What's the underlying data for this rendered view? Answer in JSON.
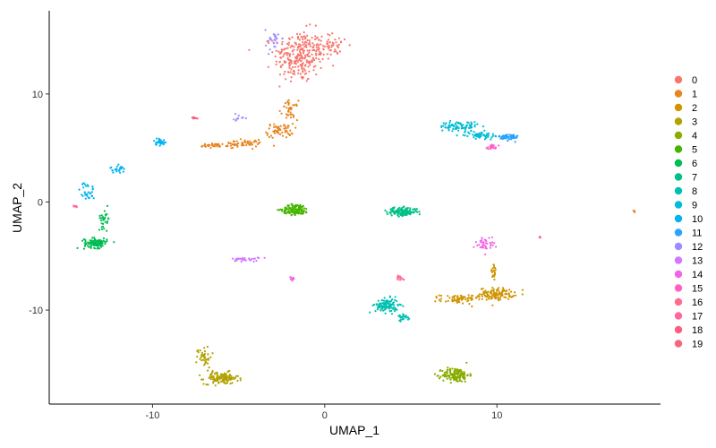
{
  "chart_data": {
    "type": "scatter",
    "title": "",
    "xlabel": "UMAP_1",
    "ylabel": "UMAP_2",
    "xlim": [
      -16,
      19.5
    ],
    "ylim": [
      -18.7,
      17.7
    ],
    "x_ticks": [
      -10,
      0,
      10
    ],
    "y_ticks": [
      -10,
      0,
      10
    ],
    "x_tick_labels": [
      "-10",
      "0",
      "10"
    ],
    "y_tick_labels": [
      "-10",
      "0",
      "10"
    ],
    "grid": false,
    "legend_position": "right",
    "series": [
      {
        "name": "0",
        "color": "#F8766D",
        "clusters": [
          {
            "cx": -1.5,
            "cy": 13.5,
            "sx": 1.3,
            "sy": 2.2,
            "n": 260
          },
          {
            "cx": 0.3,
            "cy": 14.5,
            "sx": 1.0,
            "sy": 1.0,
            "n": 60
          }
        ]
      },
      {
        "name": "1",
        "color": "#E7851E",
        "clusters": [
          {
            "cx": -2.6,
            "cy": 6.6,
            "sx": 0.7,
            "sy": 0.6,
            "n": 60
          },
          {
            "cx": -4.8,
            "cy": 5.4,
            "sx": 1.2,
            "sy": 0.3,
            "n": 60
          },
          {
            "cx": -2.0,
            "cy": 8.5,
            "sx": 0.4,
            "sy": 0.8,
            "n": 40
          },
          {
            "cx": -6.5,
            "cy": 5.2,
            "sx": 0.8,
            "sy": 0.2,
            "n": 30
          },
          {
            "cx": 18.0,
            "cy": -0.8,
            "sx": 0.1,
            "sy": 0.1,
            "n": 3
          }
        ]
      },
      {
        "name": "2",
        "color": "#D09400",
        "clusters": [
          {
            "cx": 10.0,
            "cy": -8.5,
            "sx": 0.9,
            "sy": 0.5,
            "n": 120
          },
          {
            "cx": 7.8,
            "cy": -9.0,
            "sx": 1.0,
            "sy": 0.4,
            "n": 70
          },
          {
            "cx": 9.8,
            "cy": -6.5,
            "sx": 0.2,
            "sy": 0.8,
            "n": 20
          }
        ]
      },
      {
        "name": "3",
        "color": "#B2A100",
        "clusters": [
          {
            "cx": -6.0,
            "cy": -16.3,
            "sx": 0.9,
            "sy": 0.5,
            "n": 120
          },
          {
            "cx": -7.0,
            "cy": -14.3,
            "sx": 0.4,
            "sy": 0.9,
            "n": 40
          }
        ]
      },
      {
        "name": "4",
        "color": "#89AC00",
        "clusters": [
          {
            "cx": 7.6,
            "cy": -16.0,
            "sx": 0.7,
            "sy": 0.6,
            "n": 150
          }
        ]
      },
      {
        "name": "5",
        "color": "#45B500",
        "clusters": [
          {
            "cx": -1.7,
            "cy": -0.7,
            "sx": 0.7,
            "sy": 0.45,
            "n": 140
          }
        ]
      },
      {
        "name": "6",
        "color": "#00BC51",
        "clusters": [
          {
            "cx": -13.3,
            "cy": -3.8,
            "sx": 0.6,
            "sy": 0.4,
            "n": 110
          },
          {
            "cx": -12.8,
            "cy": -1.5,
            "sx": 0.3,
            "sy": 0.8,
            "n": 30
          }
        ]
      },
      {
        "name": "7",
        "color": "#00C087",
        "clusters": [
          {
            "cx": 4.5,
            "cy": -0.9,
            "sx": 0.8,
            "sy": 0.35,
            "n": 150
          }
        ]
      },
      {
        "name": "8",
        "color": "#00C0B2",
        "clusters": [
          {
            "cx": 3.6,
            "cy": -9.6,
            "sx": 0.6,
            "sy": 0.6,
            "n": 120
          },
          {
            "cx": 4.6,
            "cy": -10.6,
            "sx": 0.3,
            "sy": 0.3,
            "n": 25
          }
        ]
      },
      {
        "name": "9",
        "color": "#00BCD6",
        "clusters": [
          {
            "cx": 7.8,
            "cy": 7.0,
            "sx": 1.0,
            "sy": 0.4,
            "n": 80
          },
          {
            "cx": 9.0,
            "cy": 6.2,
            "sx": 0.8,
            "sy": 0.3,
            "n": 60
          }
        ]
      },
      {
        "name": "10",
        "color": "#00B3F2",
        "clusters": [
          {
            "cx": -13.8,
            "cy": 1.0,
            "sx": 0.4,
            "sy": 0.8,
            "n": 30
          },
          {
            "cx": -12.0,
            "cy": 3.0,
            "sx": 0.4,
            "sy": 0.3,
            "n": 25
          },
          {
            "cx": -9.6,
            "cy": 5.6,
            "sx": 0.3,
            "sy": 0.3,
            "n": 30
          }
        ]
      },
      {
        "name": "11",
        "color": "#29A3FF",
        "clusters": [
          {
            "cx": 10.7,
            "cy": 6.0,
            "sx": 0.5,
            "sy": 0.3,
            "n": 60
          }
        ]
      },
      {
        "name": "12",
        "color": "#9C8DFF",
        "clusters": [
          {
            "cx": -3.0,
            "cy": 15.0,
            "sx": 0.4,
            "sy": 0.9,
            "n": 25
          },
          {
            "cx": -5.0,
            "cy": 7.7,
            "sx": 0.3,
            "sy": 0.3,
            "n": 10
          }
        ]
      },
      {
        "name": "13",
        "color": "#D277FF",
        "clusters": [
          {
            "cx": -4.6,
            "cy": -5.3,
            "sx": 0.7,
            "sy": 0.2,
            "n": 30
          }
        ]
      },
      {
        "name": "14",
        "color": "#F166E8",
        "clusters": [
          {
            "cx": 9.3,
            "cy": -3.9,
            "sx": 0.5,
            "sy": 0.6,
            "n": 40
          },
          {
            "cx": -1.8,
            "cy": -7.0,
            "sx": 0.2,
            "sy": 0.2,
            "n": 8
          }
        ]
      },
      {
        "name": "15",
        "color": "#FF61C7",
        "clusters": [
          {
            "cx": 9.7,
            "cy": 5.1,
            "sx": 0.3,
            "sy": 0.2,
            "n": 25
          }
        ]
      },
      {
        "name": "16",
        "color": "#FF6C91",
        "clusters": [
          {
            "cx": 4.4,
            "cy": -7.0,
            "sx": 0.2,
            "sy": 0.2,
            "n": 15
          }
        ]
      },
      {
        "name": "17",
        "color": "#FF689F",
        "clusters": [
          {
            "cx": -14.5,
            "cy": -0.4,
            "sx": 0.2,
            "sy": 0.1,
            "n": 10
          }
        ]
      },
      {
        "name": "18",
        "color": "#FC5F7F",
        "clusters": [
          {
            "cx": -7.6,
            "cy": 7.8,
            "sx": 0.2,
            "sy": 0.2,
            "n": 8
          }
        ]
      },
      {
        "name": "19",
        "color": "#F7667F",
        "clusters": [
          {
            "cx": 12.5,
            "cy": -3.3,
            "sx": 0.1,
            "sy": 0.1,
            "n": 3
          }
        ]
      }
    ]
  }
}
